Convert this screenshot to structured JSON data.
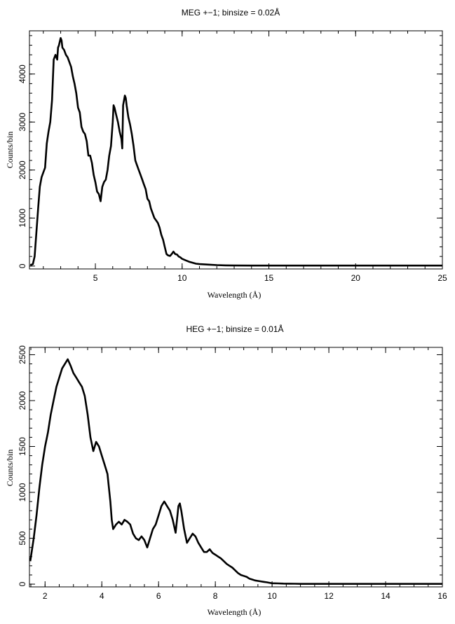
{
  "chart_data": [
    {
      "type": "line",
      "title": "MEG +−1; binsize = 0.02Å",
      "xlabel": "Wavelength (Å)",
      "ylabel": "Counts/bin",
      "xlim": [
        1.2,
        25
      ],
      "ylim": [
        -60,
        4900
      ],
      "xticks": [
        5,
        10,
        15,
        20,
        25
      ],
      "xtick_labels": [
        "5",
        "10",
        "15",
        "20",
        "25"
      ],
      "yticks": [
        0,
        1000,
        2000,
        3000,
        4000
      ],
      "ytick_labels": [
        "0",
        "1000",
        "2000",
        "3000",
        "4000"
      ],
      "grid": false,
      "series": [
        {
          "x": [
            1.25,
            1.4,
            1.5,
            1.6,
            1.7,
            1.8,
            1.9,
            2.0,
            2.1,
            2.2,
            2.3,
            2.4,
            2.5,
            2.6,
            2.7,
            2.8,
            2.85,
            2.9,
            3.0,
            3.05,
            3.1,
            3.2,
            3.3,
            3.4,
            3.5,
            3.6,
            3.7,
            3.8,
            3.9,
            4.0,
            4.1,
            4.2,
            4.3,
            4.4,
            4.5,
            4.6,
            4.7,
            4.8,
            4.9,
            5.0,
            5.1,
            5.2,
            5.3,
            5.4,
            5.5,
            5.6,
            5.7,
            5.8,
            5.9,
            6.0,
            6.05,
            6.1,
            6.2,
            6.3,
            6.4,
            6.5,
            6.55,
            6.6,
            6.7,
            6.75,
            6.8,
            6.9,
            7.0,
            7.1,
            7.2,
            7.3,
            7.4,
            7.5,
            7.6,
            7.7,
            7.8,
            7.9,
            8.0,
            8.1,
            8.2,
            8.3,
            8.4,
            8.5,
            8.6,
            8.7,
            8.8,
            8.9,
            9.0,
            9.1,
            9.2,
            9.3,
            9.4,
            9.5,
            9.6,
            9.7,
            9.8,
            9.9,
            10.0,
            10.2,
            10.4,
            10.6,
            10.8,
            11.0,
            11.5,
            12.0,
            12.5,
            13.0,
            14.0,
            15.0,
            16.0,
            17.0,
            18.0,
            20.0,
            22.0,
            24.0,
            25.0
          ],
          "y": [
            20,
            40,
            200,
            700,
            1200,
            1650,
            1850,
            1950,
            2050,
            2550,
            2800,
            3000,
            3450,
            4300,
            4400,
            4300,
            4550,
            4600,
            4750,
            4700,
            4550,
            4500,
            4400,
            4350,
            4250,
            4150,
            3950,
            3800,
            3600,
            3300,
            3200,
            2900,
            2800,
            2750,
            2600,
            2300,
            2300,
            2150,
            1900,
            1750,
            1550,
            1500,
            1350,
            1650,
            1750,
            1800,
            2000,
            2300,
            2500,
            3000,
            3350,
            3300,
            3150,
            3000,
            2800,
            2650,
            2450,
            3350,
            3550,
            3500,
            3350,
            3100,
            2950,
            2750,
            2500,
            2200,
            2100,
            2000,
            1900,
            1800,
            1700,
            1600,
            1400,
            1350,
            1200,
            1100,
            1000,
            950,
            900,
            800,
            650,
            550,
            400,
            250,
            220,
            210,
            250,
            300,
            250,
            240,
            200,
            180,
            150,
            120,
            90,
            70,
            50,
            40,
            30,
            20,
            15,
            12,
            10,
            10,
            10,
            10,
            10,
            10,
            10,
            10,
            10
          ]
        }
      ]
    },
    {
      "type": "line",
      "title": "HEG +−1; binsize = 0.01Å",
      "xlabel": "Wavelength (Å)",
      "ylabel": "Counts/bin",
      "xlim": [
        1.45,
        16
      ],
      "ylim": [
        -30,
        2580
      ],
      "xticks": [
        2,
        4,
        6,
        8,
        10,
        12,
        14,
        16
      ],
      "xtick_labels": [
        "2",
        "4",
        "6",
        "8",
        "10",
        "12",
        "14",
        "16"
      ],
      "yticks": [
        0,
        500,
        1000,
        1500,
        2000,
        2500
      ],
      "ytick_labels": [
        "0",
        "500",
        "1000",
        "1500",
        "2000",
        "2500"
      ],
      "grid": false,
      "series": [
        {
          "x": [
            1.48,
            1.6,
            1.7,
            1.8,
            1.9,
            2.0,
            2.1,
            2.2,
            2.3,
            2.4,
            2.5,
            2.6,
            2.7,
            2.8,
            2.9,
            3.0,
            3.1,
            3.2,
            3.3,
            3.4,
            3.5,
            3.6,
            3.7,
            3.75,
            3.8,
            3.9,
            4.0,
            4.1,
            4.2,
            4.3,
            4.35,
            4.4,
            4.5,
            4.6,
            4.7,
            4.8,
            4.9,
            5.0,
            5.1,
            5.2,
            5.3,
            5.4,
            5.5,
            5.6,
            5.7,
            5.8,
            5.9,
            6.0,
            6.1,
            6.2,
            6.3,
            6.4,
            6.5,
            6.6,
            6.7,
            6.75,
            6.8,
            6.9,
            7.0,
            7.1,
            7.2,
            7.3,
            7.4,
            7.5,
            7.6,
            7.7,
            7.8,
            7.9,
            8.0,
            8.1,
            8.2,
            8.3,
            8.4,
            8.5,
            8.6,
            8.7,
            8.8,
            8.9,
            9.0,
            9.1,
            9.2,
            9.3,
            9.4,
            9.5,
            9.6,
            9.7,
            9.8,
            9.9,
            10.0,
            10.2,
            10.4,
            10.6,
            10.8,
            11.0,
            11.5,
            12.0,
            13.0,
            14.0,
            15.0,
            16.0
          ],
          "y": [
            250,
            500,
            750,
            1050,
            1300,
            1500,
            1650,
            1850,
            2000,
            2150,
            2250,
            2350,
            2400,
            2450,
            2380,
            2300,
            2250,
            2200,
            2150,
            2050,
            1850,
            1600,
            1450,
            1500,
            1550,
            1500,
            1400,
            1300,
            1200,
            900,
            700,
            600,
            650,
            680,
            650,
            700,
            680,
            650,
            550,
            500,
            480,
            520,
            480,
            400,
            500,
            600,
            650,
            750,
            850,
            900,
            850,
            800,
            700,
            560,
            850,
            880,
            800,
            600,
            450,
            500,
            550,
            520,
            450,
            400,
            350,
            350,
            380,
            340,
            320,
            300,
            280,
            250,
            220,
            200,
            180,
            150,
            120,
            100,
            90,
            80,
            60,
            50,
            40,
            35,
            30,
            25,
            20,
            15,
            10,
            8,
            6,
            5,
            4,
            3,
            3,
            3,
            3,
            3,
            3,
            3
          ]
        }
      ]
    }
  ]
}
